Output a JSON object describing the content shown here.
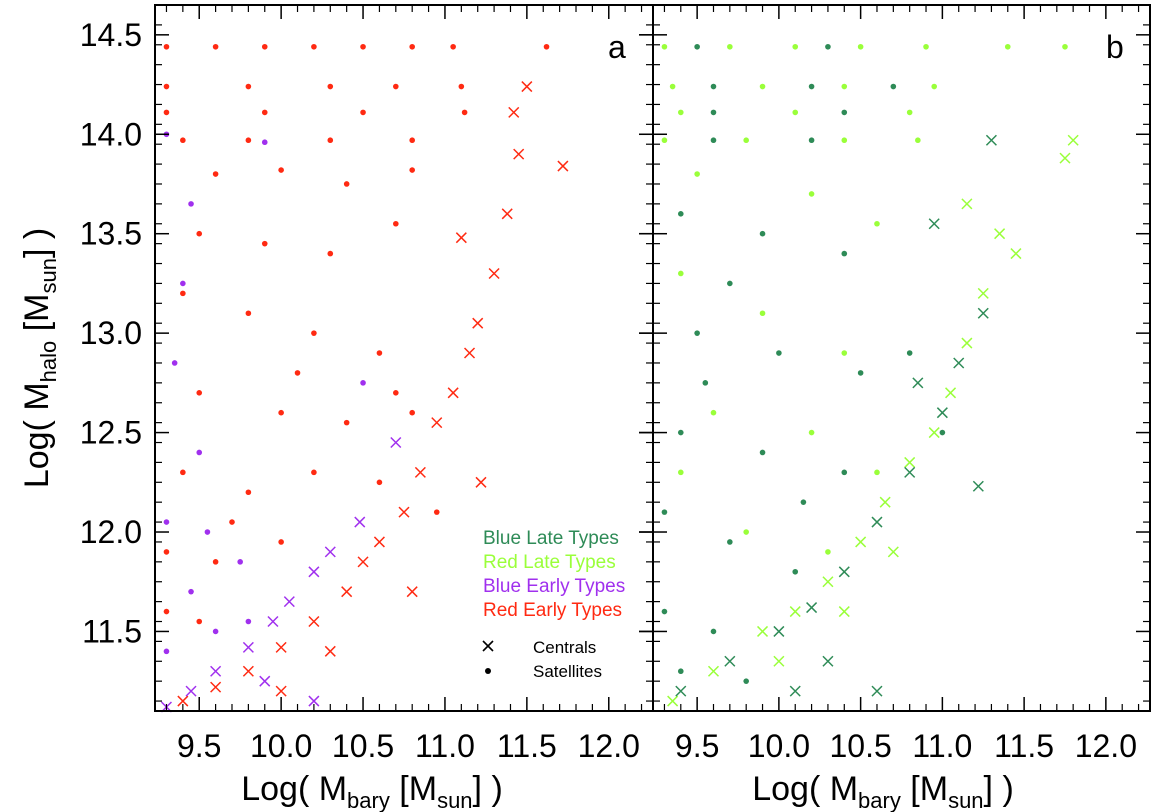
{
  "chart_data": [
    {
      "type": "scatter",
      "panel_label": "a",
      "xlabel_main": "Log( M",
      "xlabel_sub1": "bary",
      "xlabel_mid": " [M",
      "xlabel_sub2": "sun",
      "xlabel_end": "] )",
      "ylabel_main": "Log( M",
      "ylabel_sub1": "halo",
      "ylabel_mid": " [M",
      "ylabel_sub2": "sun",
      "ylabel_end": "] )",
      "xlim": [
        9.23,
        12.27
      ],
      "ylim": [
        11.1,
        14.65
      ],
      "xticks": [
        "9.5",
        "10.0",
        "10.5",
        "11.0",
        "11.5",
        "12.0"
      ],
      "yticks": [
        "11.5",
        "12.0",
        "12.5",
        "13.0",
        "13.5",
        "14.0",
        "14.5"
      ],
      "xtick_values": [
        9.5,
        10.0,
        10.5,
        11.0,
        11.5,
        12.0
      ],
      "ytick_values": [
        11.5,
        12.0,
        12.5,
        13.0,
        13.5,
        14.0,
        14.5
      ],
      "legend": {
        "placement": "bottom-right",
        "types": [
          {
            "name": "Blue Late Types",
            "color": "#2e8b57"
          },
          {
            "name": "Red Late Types",
            "color": "#9aff3a"
          },
          {
            "name": "Blue Early Types",
            "color": "#a030ee"
          },
          {
            "name": "Red Early Types",
            "color": "#ff2a12"
          }
        ],
        "symbols": [
          {
            "name": "Centrals",
            "marker": "x"
          },
          {
            "name": "Satellites",
            "marker": "dot"
          }
        ]
      },
      "series": [
        {
          "population": "Red Early Types",
          "role": "Satellites",
          "color": "#ff2a12",
          "points": [
            [
              9.3,
              14.44
            ],
            [
              9.6,
              14.44
            ],
            [
              9.9,
              14.44
            ],
            [
              10.2,
              14.44
            ],
            [
              10.5,
              14.44
            ],
            [
              10.8,
              14.44
            ],
            [
              11.05,
              14.44
            ],
            [
              11.62,
              14.44
            ],
            [
              9.3,
              14.24
            ],
            [
              9.8,
              14.24
            ],
            [
              10.3,
              14.24
            ],
            [
              10.7,
              14.24
            ],
            [
              11.1,
              14.24
            ],
            [
              9.3,
              14.11
            ],
            [
              9.9,
              14.11
            ],
            [
              10.5,
              14.11
            ],
            [
              11.12,
              14.11
            ],
            [
              9.4,
              13.97
            ],
            [
              9.8,
              13.97
            ],
            [
              10.3,
              13.97
            ],
            [
              10.8,
              13.97
            ],
            [
              9.6,
              13.8
            ],
            [
              10.0,
              13.82
            ],
            [
              10.4,
              13.75
            ],
            [
              10.8,
              13.82
            ],
            [
              9.5,
              13.5
            ],
            [
              9.9,
              13.45
            ],
            [
              10.3,
              13.4
            ],
            [
              10.7,
              13.55
            ],
            [
              9.4,
              13.2
            ],
            [
              9.8,
              13.1
            ],
            [
              10.2,
              13.0
            ],
            [
              10.6,
              12.9
            ],
            [
              9.5,
              12.7
            ],
            [
              10.0,
              12.6
            ],
            [
              10.4,
              12.55
            ],
            [
              10.8,
              12.6
            ],
            [
              9.4,
              12.3
            ],
            [
              9.8,
              12.2
            ],
            [
              10.2,
              12.3
            ],
            [
              10.6,
              12.25
            ],
            [
              9.3,
              11.9
            ],
            [
              9.6,
              11.85
            ],
            [
              10.0,
              11.95
            ],
            [
              9.3,
              11.6
            ],
            [
              9.5,
              11.55
            ],
            [
              10.7,
              12.7
            ],
            [
              10.95,
              12.1
            ],
            [
              9.7,
              12.05
            ],
            [
              10.1,
              12.8
            ]
          ]
        },
        {
          "population": "Red Early Types",
          "role": "Centrals",
          "color": "#ff2a12",
          "points": [
            [
              9.4,
              11.15
            ],
            [
              9.6,
              11.22
            ],
            [
              9.8,
              11.3
            ],
            [
              10.0,
              11.42
            ],
            [
              10.2,
              11.55
            ],
            [
              10.4,
              11.7
            ],
            [
              10.5,
              11.85
            ],
            [
              10.6,
              11.95
            ],
            [
              10.75,
              12.1
            ],
            [
              10.85,
              12.3
            ],
            [
              10.95,
              12.55
            ],
            [
              11.05,
              12.7
            ],
            [
              11.15,
              12.9
            ],
            [
              11.2,
              13.05
            ],
            [
              11.3,
              13.3
            ],
            [
              11.38,
              13.6
            ],
            [
              11.45,
              13.9
            ],
            [
              11.5,
              14.24
            ],
            [
              11.42,
              14.11
            ],
            [
              11.72,
              13.84
            ],
            [
              11.1,
              13.48
            ],
            [
              11.22,
              12.25
            ],
            [
              10.8,
              11.7
            ],
            [
              10.3,
              11.4
            ],
            [
              10.0,
              11.2
            ]
          ]
        },
        {
          "population": "Blue Early Types",
          "role": "Satellites",
          "color": "#a030ee",
          "points": [
            [
              9.3,
              14.0
            ],
            [
              9.45,
              13.65
            ],
            [
              9.4,
              13.25
            ],
            [
              9.35,
              12.85
            ],
            [
              9.5,
              12.4
            ],
            [
              9.3,
              12.05
            ],
            [
              9.45,
              11.7
            ],
            [
              9.6,
              11.5
            ],
            [
              9.8,
              11.55
            ],
            [
              9.75,
              11.85
            ],
            [
              9.9,
              13.96
            ],
            [
              10.5,
              12.75
            ],
            [
              9.55,
              12.0
            ],
            [
              9.3,
              11.4
            ]
          ]
        },
        {
          "population": "Blue Early Types",
          "role": "Centrals",
          "color": "#a030ee",
          "points": [
            [
              9.3,
              11.12
            ],
            [
              9.45,
              11.2
            ],
            [
              9.6,
              11.3
            ],
            [
              9.8,
              11.42
            ],
            [
              9.95,
              11.55
            ],
            [
              10.05,
              11.65
            ],
            [
              10.2,
              11.8
            ],
            [
              10.3,
              11.9
            ],
            [
              10.48,
              12.05
            ],
            [
              10.7,
              12.45
            ],
            [
              10.2,
              11.15
            ],
            [
              9.9,
              11.25
            ]
          ]
        }
      ]
    },
    {
      "type": "scatter",
      "panel_label": "b",
      "xlabel_main": "Log( M",
      "xlabel_sub1": "bary",
      "xlabel_mid": " [M",
      "xlabel_sub2": "sun",
      "xlabel_end": "] )",
      "xlim": [
        9.23,
        12.27
      ],
      "ylim": [
        11.1,
        14.65
      ],
      "xticks": [
        "9.5",
        "10.0",
        "10.5",
        "11.0",
        "11.5",
        "12.0"
      ],
      "xtick_values": [
        9.5,
        10.0,
        10.5,
        11.0,
        11.5,
        12.0
      ],
      "ytick_values": [
        11.5,
        12.0,
        12.5,
        13.0,
        13.5,
        14.0,
        14.5
      ],
      "series": [
        {
          "population": "Red Late Types",
          "role": "Satellites",
          "color": "#9aff3a",
          "points": [
            [
              9.3,
              14.44
            ],
            [
              9.7,
              14.44
            ],
            [
              10.1,
              14.44
            ],
            [
              10.5,
              14.44
            ],
            [
              10.9,
              14.44
            ],
            [
              11.4,
              14.44
            ],
            [
              11.75,
              14.44
            ],
            [
              9.35,
              14.24
            ],
            [
              9.9,
              14.24
            ],
            [
              10.4,
              14.24
            ],
            [
              10.95,
              14.24
            ],
            [
              9.4,
              14.11
            ],
            [
              10.1,
              14.11
            ],
            [
              10.8,
              14.11
            ],
            [
              9.3,
              13.97
            ],
            [
              9.8,
              13.97
            ],
            [
              10.4,
              13.97
            ],
            [
              10.85,
              13.97
            ],
            [
              9.5,
              13.8
            ],
            [
              10.2,
              13.7
            ],
            [
              10.6,
              13.55
            ],
            [
              9.4,
              13.3
            ],
            [
              9.9,
              13.1
            ],
            [
              10.4,
              12.9
            ],
            [
              9.6,
              12.6
            ],
            [
              10.2,
              12.5
            ],
            [
              9.8,
              12.0
            ],
            [
              10.3,
              11.9
            ],
            [
              9.4,
              12.3
            ],
            [
              10.6,
              12.3
            ]
          ]
        },
        {
          "population": "Red Late Types",
          "role": "Centrals",
          "color": "#9aff3a",
          "points": [
            [
              9.35,
              11.15
            ],
            [
              9.6,
              11.3
            ],
            [
              9.9,
              11.5
            ],
            [
              10.1,
              11.6
            ],
            [
              10.3,
              11.75
            ],
            [
              10.5,
              11.95
            ],
            [
              10.65,
              12.15
            ],
            [
              10.8,
              12.35
            ],
            [
              10.95,
              12.5
            ],
            [
              11.05,
              12.7
            ],
            [
              11.15,
              12.95
            ],
            [
              11.25,
              13.2
            ],
            [
              11.35,
              13.5
            ],
            [
              11.45,
              13.4
            ],
            [
              11.75,
              13.88
            ],
            [
              11.8,
              13.97
            ],
            [
              11.15,
              13.65
            ],
            [
              10.0,
              11.35
            ],
            [
              10.4,
              11.6
            ],
            [
              10.7,
              11.9
            ]
          ]
        },
        {
          "population": "Blue Late Types",
          "role": "Satellites",
          "color": "#2e8b57",
          "points": [
            [
              9.5,
              14.44
            ],
            [
              10.3,
              14.44
            ],
            [
              9.6,
              14.24
            ],
            [
              10.2,
              14.24
            ],
            [
              10.7,
              14.24
            ],
            [
              9.6,
              14.11
            ],
            [
              10.4,
              14.11
            ],
            [
              9.6,
              13.97
            ],
            [
              10.2,
              13.97
            ],
            [
              9.4,
              13.6
            ],
            [
              9.9,
              13.5
            ],
            [
              10.4,
              13.4
            ],
            [
              9.5,
              13.0
            ],
            [
              10.0,
              12.9
            ],
            [
              10.5,
              12.8
            ],
            [
              9.4,
              12.5
            ],
            [
              9.9,
              12.4
            ],
            [
              10.4,
              12.3
            ],
            [
              9.3,
              12.1
            ],
            [
              9.7,
              11.95
            ],
            [
              10.1,
              11.8
            ],
            [
              9.3,
              11.6
            ],
            [
              9.6,
              11.5
            ],
            [
              9.4,
              11.3
            ],
            [
              9.8,
              11.25
            ],
            [
              10.8,
              12.9
            ],
            [
              11.0,
              12.5
            ],
            [
              9.55,
              12.75
            ],
            [
              10.15,
              12.15
            ],
            [
              9.7,
              13.25
            ]
          ]
        },
        {
          "population": "Blue Late Types",
          "role": "Centrals",
          "color": "#2e8b57",
          "points": [
            [
              9.4,
              11.2
            ],
            [
              9.7,
              11.35
            ],
            [
              10.0,
              11.5
            ],
            [
              10.2,
              11.62
            ],
            [
              10.4,
              11.8
            ],
            [
              10.6,
              12.05
            ],
            [
              10.8,
              12.3
            ],
            [
              11.0,
              12.6
            ],
            [
              11.1,
              12.85
            ],
            [
              11.25,
              13.1
            ],
            [
              11.3,
              13.97
            ],
            [
              10.95,
              13.55
            ],
            [
              11.22,
              12.23
            ],
            [
              10.6,
              11.2
            ],
            [
              10.3,
              11.35
            ],
            [
              10.1,
              11.2
            ],
            [
              10.85,
              12.75
            ]
          ]
        }
      ]
    }
  ]
}
